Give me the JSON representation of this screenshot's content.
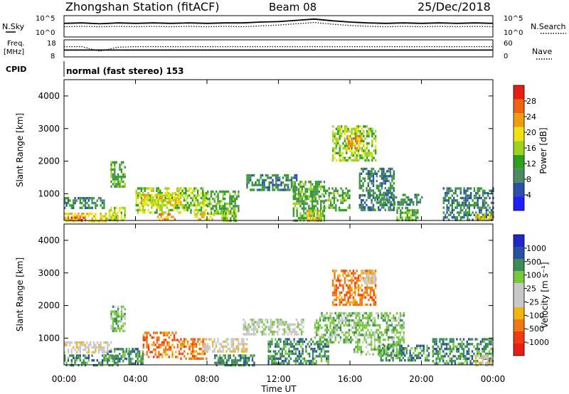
{
  "header": {
    "station": "Zhongshan Station (fitACF)",
    "beam": "Beam 08",
    "date": "25/Dec/2018"
  },
  "strip_labels": {
    "nsky": "N.Sky",
    "nsearch": "N.Search",
    "freq_top": "Freq.",
    "freq_unit": "[MHz]",
    "nave": "Nave",
    "cpid": "CPID",
    "cpid_text": "normal (fast stereo) 153",
    "noise_ticks_left": [
      "10^5",
      "10^0"
    ],
    "noise_ticks_right": [
      "10^5",
      "10^0"
    ],
    "freq_ticks": [
      "18",
      "8"
    ],
    "nave_ticks": [
      "60",
      "0"
    ]
  },
  "colors": {
    "power_scale": [
      "#1e1eff",
      "#2c4faa",
      "#4a8a64",
      "#2ea01e",
      "#9ed21e",
      "#f0e114",
      "#f09c10",
      "#f06410",
      "#e61e14"
    ],
    "velocity_scale": [
      "#e61e14",
      "#f03c10",
      "#f07814",
      "#f0b414",
      "#c8c8c8",
      "#c8c8c8",
      "#78c83c",
      "#3c8c5a",
      "#2850a0",
      "#1e28c8"
    ]
  },
  "chart_data": [
    {
      "type": "heatmap",
      "name": "power",
      "xlabel": "",
      "ylabel": "Slant Range [km]",
      "ylim": [
        180,
        4500
      ],
      "yticks": [
        "4000",
        "3000",
        "2000",
        "1000"
      ],
      "colorbar": {
        "label": "Power [dB]",
        "ticks": [
          "28",
          "24",
          "20",
          "16",
          "12",
          "8",
          "4"
        ],
        "range": [
          0,
          32
        ]
      },
      "regions": [
        {
          "t0": 0.0,
          "t1": 2.2,
          "r0": 600,
          "r1": 900,
          "level": 8
        },
        {
          "t0": 0.0,
          "t1": 3.0,
          "r0": 180,
          "r1": 420,
          "level": 20
        },
        {
          "t0": 0.0,
          "t1": 1.2,
          "r0": 180,
          "r1": 300,
          "level": 26
        },
        {
          "t0": 2.6,
          "t1": 3.4,
          "r0": 1200,
          "r1": 2000,
          "level": 10
        },
        {
          "t0": 2.5,
          "t1": 3.4,
          "r0": 200,
          "r1": 600,
          "level": 16
        },
        {
          "t0": 4.0,
          "t1": 8.0,
          "r0": 400,
          "r1": 1200,
          "level": 14
        },
        {
          "t0": 4.2,
          "t1": 6.5,
          "r0": 700,
          "r1": 1000,
          "level": 18
        },
        {
          "t0": 5.2,
          "t1": 6.2,
          "r0": 180,
          "r1": 400,
          "level": 22
        },
        {
          "t0": 7.3,
          "t1": 8.4,
          "r0": 180,
          "r1": 400,
          "level": 18
        },
        {
          "t0": 8.0,
          "t1": 9.8,
          "r0": 400,
          "r1": 1100,
          "level": 10
        },
        {
          "t0": 8.8,
          "t1": 9.6,
          "r0": 200,
          "r1": 500,
          "level": 14
        },
        {
          "t0": 10.2,
          "t1": 13.0,
          "r0": 1100,
          "r1": 1600,
          "level": 6
        },
        {
          "t0": 12.8,
          "t1": 14.6,
          "r0": 200,
          "r1": 1400,
          "level": 10
        },
        {
          "t0": 13.6,
          "t1": 14.4,
          "r0": 200,
          "r1": 500,
          "level": 20
        },
        {
          "t0": 14.5,
          "t1": 16.0,
          "r0": 500,
          "r1": 1200,
          "level": 12
        },
        {
          "t0": 15.0,
          "t1": 17.4,
          "r0": 2000,
          "r1": 3100,
          "level": 14
        },
        {
          "t0": 15.8,
          "t1": 16.6,
          "r0": 2400,
          "r1": 2800,
          "level": 22
        },
        {
          "t0": 16.5,
          "t1": 18.5,
          "r0": 500,
          "r1": 1800,
          "level": 8
        },
        {
          "t0": 17.5,
          "t1": 20.0,
          "r0": 700,
          "r1": 1000,
          "level": 6
        },
        {
          "t0": 18.6,
          "t1": 19.8,
          "r0": 200,
          "r1": 600,
          "level": 12
        },
        {
          "t0": 21.2,
          "t1": 24.0,
          "r0": 200,
          "r1": 1200,
          "level": 6
        },
        {
          "t0": 23.0,
          "t1": 24.0,
          "r0": 200,
          "r1": 400,
          "level": 18
        }
      ]
    },
    {
      "type": "heatmap",
      "name": "velocity",
      "xlabel": "Time UT",
      "ylabel": "Slant Range [km]",
      "ylim": [
        180,
        4500
      ],
      "xlim": [
        0,
        24
      ],
      "xticks": [
        "00:00",
        "04:00",
        "08:00",
        "12:00",
        "16:00",
        "20:00",
        "00:00"
      ],
      "yticks": [
        "4000",
        "3000",
        "2000",
        "1000"
      ],
      "colorbar": {
        "label": "Velocity [m s⁻¹]",
        "ticks": [
          "1000",
          "500",
          "100",
          "25",
          "-25",
          "-100",
          "-500",
          "-1000"
        ]
      },
      "regions": [
        {
          "t0": 0.0,
          "t1": 2.6,
          "r0": 600,
          "r1": 900,
          "level": 4
        },
        {
          "t0": 0.0,
          "t1": 3.0,
          "r0": 180,
          "r1": 500,
          "level": 7
        },
        {
          "t0": 2.6,
          "t1": 3.4,
          "r0": 1200,
          "r1": 2000,
          "level": 6
        },
        {
          "t0": 2.4,
          "t1": 3.6,
          "r0": 300,
          "r1": 700,
          "level": 7
        },
        {
          "t0": 3.6,
          "t1": 4.4,
          "r0": 200,
          "r1": 700,
          "level": 7
        },
        {
          "t0": 4.4,
          "t1": 6.4,
          "r0": 400,
          "r1": 1200,
          "level": 2
        },
        {
          "t0": 6.4,
          "t1": 8.0,
          "r0": 350,
          "r1": 1000,
          "level": 2
        },
        {
          "t0": 7.8,
          "t1": 10.2,
          "r0": 600,
          "r1": 1000,
          "level": 4
        },
        {
          "t0": 8.4,
          "t1": 10.6,
          "r0": 200,
          "r1": 500,
          "level": 7
        },
        {
          "t0": 10.0,
          "t1": 13.4,
          "r0": 1100,
          "r1": 1600,
          "level": 5
        },
        {
          "t0": 11.4,
          "t1": 14.8,
          "r0": 200,
          "r1": 1000,
          "level": 7
        },
        {
          "t0": 14.0,
          "t1": 16.2,
          "r0": 900,
          "r1": 1800,
          "level": 6
        },
        {
          "t0": 15.0,
          "t1": 17.4,
          "r0": 2000,
          "r1": 3100,
          "level": 2
        },
        {
          "t0": 16.6,
          "t1": 17.4,
          "r0": 2700,
          "r1": 3100,
          "level": 4
        },
        {
          "t0": 16.2,
          "t1": 19.0,
          "r0": 500,
          "r1": 1800,
          "level": 6
        },
        {
          "t0": 17.6,
          "t1": 20.4,
          "r0": 300,
          "r1": 800,
          "level": 7
        },
        {
          "t0": 20.6,
          "t1": 24.0,
          "r0": 200,
          "r1": 1000,
          "level": 7
        },
        {
          "t0": 23.0,
          "t1": 24.0,
          "r0": 200,
          "r1": 500,
          "level": 4
        }
      ]
    },
    {
      "type": "line",
      "name": "noise",
      "series": [
        {
          "name": "N.Sky",
          "values": [
            3.2,
            3.3,
            3.1,
            3.3,
            3.2,
            3.3,
            3.2,
            3.3,
            3.2,
            3.3,
            3.3,
            3.5,
            3.6,
            3.9,
            4.2,
            3.8,
            3.5,
            3.3,
            3.2,
            3.3,
            3.2,
            3.3,
            3.2,
            3.3,
            3.2
          ]
        },
        {
          "name": "N.Search",
          "values": [
            2.4,
            2.5,
            2.4,
            2.5,
            2.4,
            2.5,
            2.4,
            2.5,
            2.4,
            2.5,
            2.4,
            2.6,
            2.8,
            3.1,
            3.4,
            3.0,
            2.7,
            2.5,
            2.4,
            2.5,
            2.4,
            2.5,
            2.4,
            2.5,
            2.4
          ]
        }
      ],
      "ylim": [
        0,
        5
      ]
    },
    {
      "type": "line",
      "name": "freq-nave",
      "series": [
        {
          "name": "Freq.",
          "values": [
            12.0,
            12.0,
            12.0,
            12.0,
            12.0,
            12.0,
            12.0,
            12.0,
            12.0,
            12.0,
            12.0,
            12.0,
            12.0,
            12.0,
            12.0,
            12.0,
            12.0,
            12.0,
            12.0,
            12.0,
            12.0,
            12.0,
            12.0,
            12.0,
            12.0
          ]
        },
        {
          "name": "Nave",
          "values": [
            36,
            36,
            20,
            34,
            36,
            36,
            36,
            36,
            36,
            36,
            36,
            36,
            36,
            36,
            36,
            36,
            36,
            36,
            36,
            36,
            36,
            36,
            36,
            36,
            36
          ]
        }
      ],
      "ylim_freq": [
        8,
        18
      ],
      "ylim_nave": [
        0,
        60
      ]
    }
  ]
}
